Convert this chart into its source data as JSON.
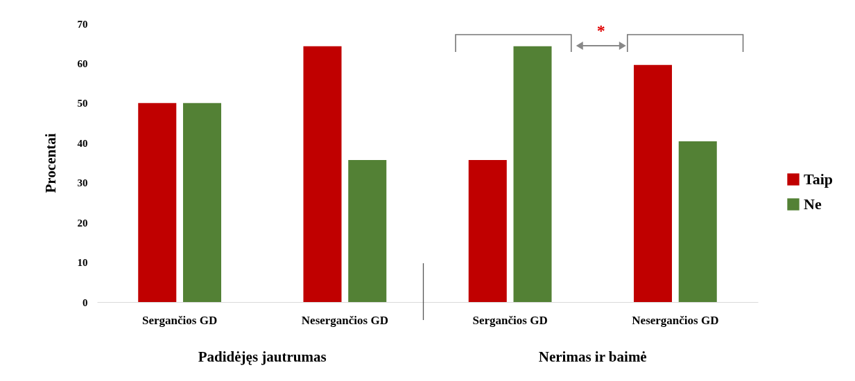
{
  "chart_data": {
    "type": "bar",
    "ylabel": "Procentai",
    "categories": [
      "Sergančios GD",
      "Nesergančios GD",
      "Sergančios GD",
      "Nesergančios GD"
    ],
    "series": [
      {
        "name": "Taip",
        "color": "#c00000",
        "values": [
          50,
          64.3,
          35.7,
          59.6
        ]
      },
      {
        "name": "Ne",
        "color": "#538135",
        "values": [
          50,
          35.7,
          64.3,
          40.4
        ]
      }
    ],
    "ylim": [
      0,
      70
    ],
    "yticks": [
      0,
      10,
      20,
      30,
      40,
      50,
      60,
      70
    ],
    "grid": false,
    "legend": "right",
    "annotations": [
      "Padidėjęs jautrumas",
      "Nerimas ir baimė",
      "*"
    ]
  }
}
